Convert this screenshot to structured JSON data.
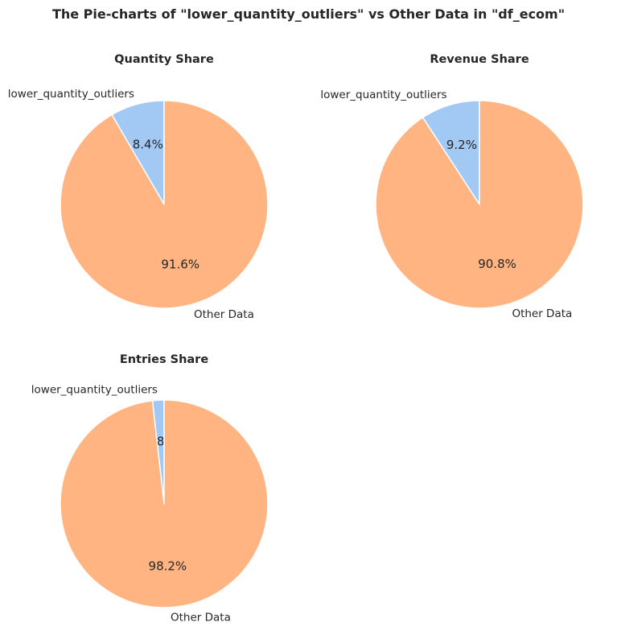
{
  "figure": {
    "title": "The Pie-charts of \"lower_quantity_outliers\" vs Other Data in \"df_ecom\""
  },
  "colors": {
    "lower_quantity_outliers": "#a1c9f4",
    "other_data": "#ffb482",
    "wedge_edge": "#ffffff",
    "text": "#262626"
  },
  "chart_data": [
    {
      "type": "pie",
      "title": "Quantity Share",
      "labels": [
        "lower_quantity_outliers",
        "Other Data"
      ],
      "values": [
        8.4,
        91.6
      ],
      "autopct": [
        "8.4%",
        "91.6%"
      ],
      "start_angle_deg": 90,
      "direction": "counterclockwise"
    },
    {
      "type": "pie",
      "title": "Revenue Share",
      "labels": [
        "lower_quantity_outliers",
        "Other Data"
      ],
      "values": [
        9.2,
        90.8
      ],
      "autopct": [
        "9.2%",
        "90.8%"
      ],
      "start_angle_deg": 90,
      "direction": "counterclockwise"
    },
    {
      "type": "pie",
      "title": "Entries Share",
      "labels": [
        "lower_quantity_outliers",
        "Other Data"
      ],
      "values": [
        1.8,
        98.2
      ],
      "autopct": [
        "1.8%",
        "98.2%"
      ],
      "start_angle_deg": 90,
      "direction": "counterclockwise"
    }
  ]
}
